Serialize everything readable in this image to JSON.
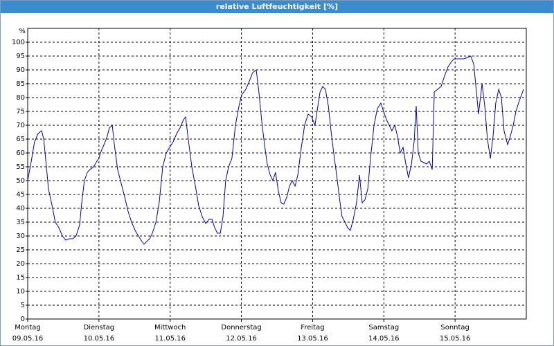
{
  "chart_data": {
    "type": "line",
    "title": "relative Luftfeuchtigkeit [%]",
    "y_unit": "%",
    "xlim": [
      0,
      168
    ],
    "ylim": [
      0,
      105
    ],
    "yticks": [
      0,
      5,
      10,
      15,
      20,
      25,
      30,
      35,
      40,
      45,
      50,
      55,
      60,
      65,
      70,
      75,
      80,
      85,
      90,
      95,
      100
    ],
    "xticks": [
      {
        "value": 0,
        "label": "Montag",
        "date": "09.05.16"
      },
      {
        "value": 24,
        "label": "Dienstag",
        "date": "10.05.16"
      },
      {
        "value": 48,
        "label": "Mittwoch",
        "date": "11.05.16"
      },
      {
        "value": 72,
        "label": "Donnerstag",
        "date": "12.05.16"
      },
      {
        "value": 96,
        "label": "Freitag",
        "date": "13.05.16"
      },
      {
        "value": 120,
        "label": "Samstag",
        "date": "14.05.16"
      },
      {
        "value": 144,
        "label": "Sonntag",
        "date": "15.05.16"
      }
    ],
    "grid": true,
    "series": [
      {
        "color": "#0000b0",
        "x": [
          0,
          1.2,
          2.3,
          3.5,
          4.7,
          5.4,
          6.3,
          7,
          8.2,
          9.3,
          10.5,
          11.7,
          12.8,
          14,
          15.2,
          16.3,
          17.5,
          18.2,
          19.1,
          20.1,
          21,
          22.2,
          23.3,
          24,
          24.5,
          25.7,
          26.8,
          27.5,
          28.5,
          29.2,
          30.3,
          31.5,
          32.7,
          33.8,
          35,
          36.2,
          37.3,
          38.5,
          39.2,
          40.1,
          41.1,
          42,
          43.2,
          44.3,
          45.5,
          46.7,
          47.8,
          49,
          50.2,
          51.3,
          52.5,
          53.2,
          54.1,
          55.3,
          56.5,
          57.6,
          58.8,
          60,
          61.1,
          62.1,
          63,
          63.9,
          64.9,
          65.8,
          66.7,
          67.7,
          68.8,
          70,
          71.2,
          72.1,
          73.5,
          74.7,
          75.8,
          77,
          77.9,
          78.9,
          79.8,
          80.7,
          81.7,
          82.6,
          83.5,
          84.5,
          85.4,
          86.3,
          87.3,
          88.2,
          89.1,
          90.1,
          91,
          92.2,
          93.3,
          94.5,
          95.7,
          96.8,
          97.5,
          98.5,
          99.4,
          100.3,
          101.3,
          102.2,
          103.1,
          104.1,
          105,
          105.9,
          106.9,
          107.8,
          108.7,
          109.7,
          110.8,
          111.8,
          112.7,
          113.6,
          114.6,
          115.5,
          116.7,
          117.8,
          119,
          119.9,
          120.9,
          121.8,
          122.7,
          123.7,
          124.6,
          125.5,
          126.5,
          127.4,
          128.3,
          129.3,
          130.2,
          130.9,
          131.6,
          132.5,
          133.5,
          134.4,
          135.3,
          136.3,
          137,
          138.1,
          139.3,
          140.5,
          141.6,
          142.8,
          143.7,
          144.7,
          145.8,
          147,
          148.2,
          149.3,
          150.3,
          151.2,
          151.9,
          153.1,
          154,
          154.9,
          155.9,
          156.8,
          157.7,
          158.7,
          159.6,
          160.5,
          161.7,
          162.6,
          163.6,
          164.5,
          165.7,
          167.1
        ],
        "values": [
          50,
          57,
          64,
          67,
          68,
          65,
          55,
          47,
          41,
          35,
          33,
          30,
          28.5,
          29,
          29,
          30,
          34,
          42,
          50,
          53,
          54,
          55,
          57,
          58,
          60,
          63,
          66,
          69,
          70,
          63,
          54,
          49,
          44,
          39,
          35,
          32,
          30,
          28,
          27,
          28,
          29,
          31,
          35,
          42,
          55,
          60,
          62,
          64,
          67,
          69,
          72,
          73,
          65,
          55,
          48,
          41,
          37,
          34.5,
          36,
          36,
          33,
          31,
          31,
          37,
          50,
          55,
          58,
          70,
          77,
          81,
          83,
          86,
          89,
          90,
          82,
          71,
          63,
          56,
          52,
          50,
          53,
          46,
          42,
          41.5,
          44,
          48,
          50,
          48,
          52,
          62,
          70,
          74,
          73,
          70,
          75,
          82,
          84,
          83,
          77,
          68,
          60,
          52,
          44,
          37,
          35,
          33,
          32,
          36,
          42,
          52,
          42,
          43,
          47,
          58,
          70,
          76,
          78,
          75,
          72,
          70,
          68,
          70,
          66,
          60,
          62,
          56,
          51,
          56,
          64,
          77,
          60,
          57,
          56.5,
          56,
          57,
          54,
          82,
          83,
          84,
          88,
          91,
          93,
          94,
          94,
          94,
          94,
          94.5,
          95,
          92,
          82,
          74,
          85,
          77,
          65,
          58,
          66,
          78,
          83,
          80,
          68,
          63,
          66,
          70,
          75,
          79,
          83
        ]
      }
    ]
  }
}
